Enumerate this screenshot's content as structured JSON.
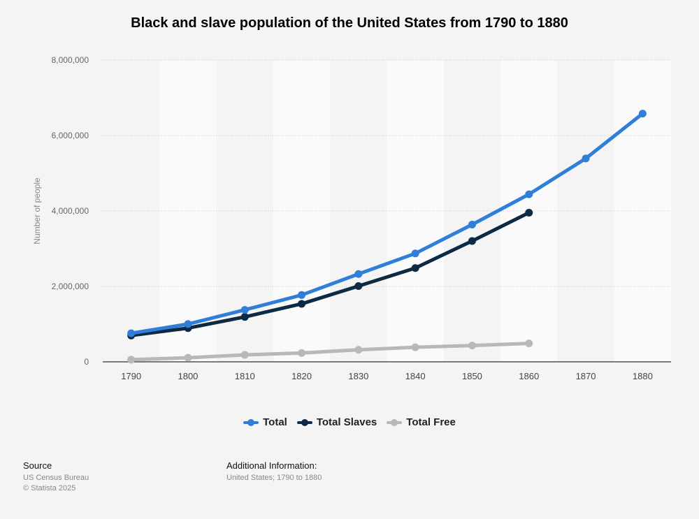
{
  "title": "Black and slave population of the United States from 1790 to 1880",
  "footer": {
    "source_heading": "Source",
    "source_name": "US Census Bureau",
    "copyright": "© Statista 2025",
    "additional_heading": "Additional Information:",
    "additional_text": "United States; 1790 to 1880"
  },
  "chart_data": {
    "type": "line",
    "title": "Black and slave population of the United States from 1790 to 1880",
    "xlabel": "",
    "ylabel": "Number of people",
    "categories": [
      "1790",
      "1800",
      "1810",
      "1820",
      "1830",
      "1840",
      "1850",
      "1860",
      "1870",
      "1880"
    ],
    "yticks": [
      "0",
      "2,000,000",
      "4,000,000",
      "6,000,000",
      "8,000,000"
    ],
    "ylim": [
      0,
      8000000
    ],
    "grid": true,
    "legend_position": "bottom",
    "series": [
      {
        "name": "Total",
        "color": "#2f7ed8",
        "values": [
          757000,
          1002000,
          1378000,
          1772000,
          2329000,
          2874000,
          3639000,
          4442000,
          5392000,
          6581000
        ]
      },
      {
        "name": "Total Slaves",
        "color": "#0d2a45",
        "values": [
          698000,
          894000,
          1191000,
          1538000,
          2009000,
          2487000,
          3204000,
          3954000,
          null,
          null
        ]
      },
      {
        "name": "Total Free",
        "color": "#b8b8b8",
        "values": [
          59000,
          108000,
          186000,
          234000,
          320000,
          386000,
          434000,
          488000,
          null,
          null
        ]
      }
    ]
  }
}
